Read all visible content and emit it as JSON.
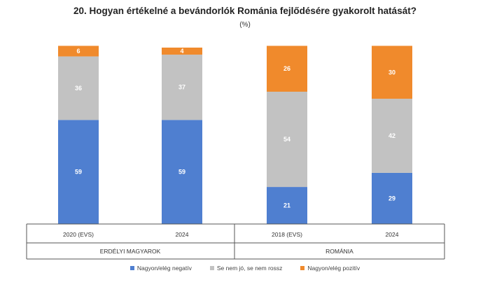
{
  "chart_data": {
    "type": "bar",
    "stacked": true,
    "title": "20. Hogyan értékelné a bevándorlók Románia fejlődésére gyakorolt hatását?",
    "subtitle": "(%)",
    "groups": [
      {
        "label": "ERDÉLYI MAGYAROK",
        "categories": [
          "2020 (EVS)",
          "2024"
        ]
      },
      {
        "label": "ROMÁNIA",
        "categories": [
          "2018 (EVS)",
          "2024"
        ]
      }
    ],
    "categories": [
      "2020 (EVS)",
      "2024",
      "2018 (EVS)",
      "2024"
    ],
    "series": [
      {
        "name": "Nagyon/elég negatív",
        "color": "#4f7fd0",
        "values": [
          59,
          59,
          21,
          29
        ]
      },
      {
        "name": "Se nem jó, se nem rossz",
        "color": "#c2c2c2",
        "values": [
          36,
          37,
          54,
          42
        ]
      },
      {
        "name": "Nagyon/elég pozitív",
        "color": "#f08a2c",
        "values": [
          6,
          4,
          26,
          30
        ]
      }
    ],
    "ylim": [
      0,
      100
    ],
    "grid": false,
    "legend_position": "bottom"
  }
}
